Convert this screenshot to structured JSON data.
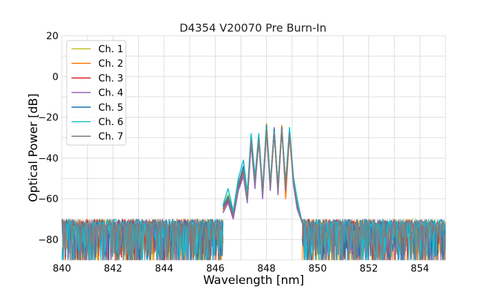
{
  "chart_data": {
    "type": "line",
    "title": "D4354 V20070 Pre Burn-In",
    "xlabel": "Wavelength [nm]",
    "ylabel": "Optical Power [dB]",
    "xlim": [
      840,
      855
    ],
    "ylim": [
      -90,
      20
    ],
    "xticks": [
      840,
      842,
      844,
      846,
      848,
      850,
      852,
      854
    ],
    "yticks": [
      -80,
      -60,
      -40,
      -20,
      0,
      20
    ],
    "grid": true,
    "legend_position": "top-left",
    "noise_floor": -72,
    "series": [
      {
        "name": "Ch. 1",
        "color": "#bcbd22",
        "x": [
          846.3,
          846.5,
          846.7,
          846.9,
          847.1,
          847.25,
          847.4,
          847.55,
          847.7,
          847.85,
          848.0,
          848.15,
          848.3,
          848.45,
          848.6,
          848.75,
          848.9,
          849.05,
          849.2,
          849.4
        ],
        "y": [
          -64,
          -58,
          -67,
          -52,
          -45,
          -58,
          -30,
          -50,
          -30,
          -56,
          -23,
          -52,
          -26,
          -53,
          -25,
          -52,
          -27,
          -50,
          -62,
          -72
        ]
      },
      {
        "name": "Ch. 2",
        "color": "#ff7f0e",
        "x": [
          846.3,
          846.5,
          846.7,
          846.9,
          847.1,
          847.25,
          847.4,
          847.55,
          847.7,
          847.85,
          848.0,
          848.15,
          848.3,
          848.45,
          848.6,
          848.75,
          848.9,
          849.05,
          849.2,
          849.4
        ],
        "y": [
          -66,
          -60,
          -68,
          -54,
          -46,
          -60,
          -31,
          -52,
          -31,
          -58,
          -25,
          -54,
          -27,
          -55,
          -24,
          -60,
          -28,
          -52,
          -64,
          -72
        ]
      },
      {
        "name": "Ch. 3",
        "color": "#d62728",
        "x": [
          846.3,
          846.5,
          846.7,
          846.9,
          847.1,
          847.25,
          847.4,
          847.55,
          847.7,
          847.85,
          848.0,
          848.15,
          848.3,
          848.45,
          848.6,
          848.75,
          848.9,
          849.05,
          849.2,
          849.4
        ],
        "y": [
          -65,
          -61,
          -69,
          -55,
          -47,
          -61,
          -32,
          -53,
          -32,
          -57,
          -26,
          -55,
          -28,
          -56,
          -26,
          -54,
          -29,
          -51,
          -63,
          -72
        ]
      },
      {
        "name": "Ch. 4",
        "color": "#9467bd",
        "x": [
          846.3,
          846.5,
          846.7,
          846.9,
          847.1,
          847.25,
          847.4,
          847.55,
          847.7,
          847.85,
          848.0,
          848.15,
          848.3,
          848.45,
          848.6,
          848.75,
          848.9,
          849.05,
          849.2,
          849.4
        ],
        "y": [
          -67,
          -62,
          -70,
          -56,
          -49,
          -62,
          -33,
          -55,
          -30,
          -60,
          -27,
          -56,
          -25,
          -58,
          -26,
          -56,
          -27,
          -53,
          -65,
          -72
        ]
      },
      {
        "name": "Ch. 5",
        "color": "#1f77b4",
        "x": [
          846.3,
          846.5,
          846.7,
          846.9,
          847.1,
          847.25,
          847.4,
          847.55,
          847.7,
          847.85,
          848.0,
          848.15,
          848.3,
          848.45,
          848.6,
          848.75,
          848.9,
          849.05,
          849.2,
          849.4
        ],
        "y": [
          -64,
          -59,
          -67,
          -53,
          -44,
          -59,
          -29,
          -51,
          -29,
          -56,
          -24,
          -53,
          -26,
          -54,
          -25,
          -53,
          -26,
          -50,
          -62,
          -72
        ]
      },
      {
        "name": "Ch. 6",
        "color": "#17becf",
        "x": [
          846.3,
          846.5,
          846.7,
          846.9,
          847.1,
          847.25,
          847.4,
          847.55,
          847.7,
          847.85,
          848.0,
          848.15,
          848.3,
          848.45,
          848.6,
          848.75,
          848.9,
          849.05,
          849.2,
          849.4
        ],
        "y": [
          -63,
          -55,
          -66,
          -50,
          -41,
          -57,
          -28,
          -49,
          -28,
          -55,
          -25,
          -52,
          -27,
          -53,
          -26,
          -52,
          -25,
          -49,
          -60,
          -72
        ]
      },
      {
        "name": "Ch. 7",
        "color": "#7f7f7f",
        "x": [
          846.3,
          846.5,
          846.7,
          846.9,
          847.1,
          847.25,
          847.4,
          847.55,
          847.7,
          847.85,
          848.0,
          848.15,
          848.3,
          848.45,
          848.6,
          848.75,
          848.9,
          849.05,
          849.2,
          849.4
        ],
        "y": [
          -65,
          -60,
          -68,
          -54,
          -46,
          -60,
          -31,
          -52,
          -31,
          -57,
          -26,
          -54,
          -28,
          -55,
          -26,
          -54,
          -28,
          -51,
          -63,
          -72
        ]
      }
    ]
  }
}
